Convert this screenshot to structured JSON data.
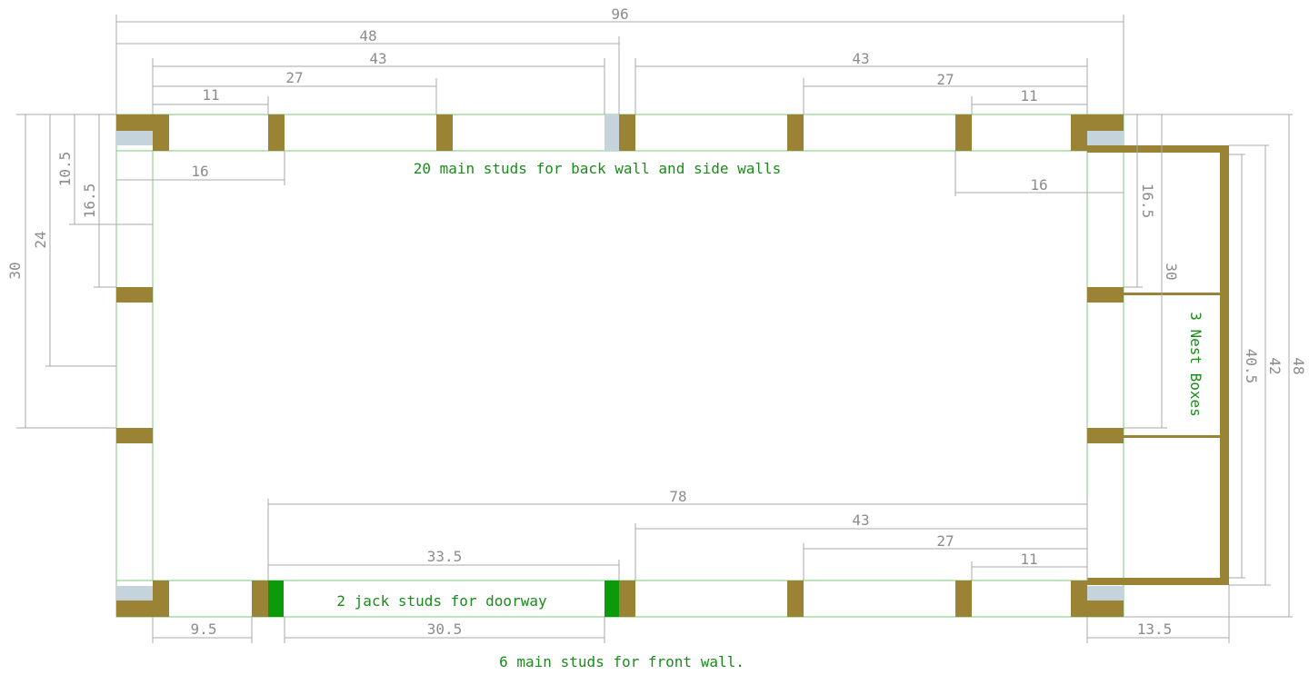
{
  "colors": {
    "stud": "#9a8334",
    "jack_stud": "#0a9a0a",
    "plate_fill": "#c5d4dc",
    "wall_line": "#7ec97e",
    "dim_line": "#a8a8a8",
    "dim_text": "#8c8c8c",
    "note_text": "#1a8c1a"
  },
  "notes": {
    "back_wall": "20 main studs for back wall and side walls",
    "jack_studs": "2 jack studs for doorway",
    "front_wall": "6 main studs for front wall.",
    "nest_boxes": "3 Nest Boxes"
  },
  "dimensions": {
    "top_96": "96",
    "top_48": "48",
    "top_43_left": "43",
    "top_27_left": "27",
    "top_11_left": "11",
    "top_43_right": "43",
    "top_27_right": "27",
    "top_11_right": "11",
    "left_16": "16",
    "right_16": "16",
    "left_30": "30",
    "left_24": "24",
    "left_10_5": "10.5",
    "left_16_5": "16.5",
    "right_16_5": "16.5",
    "right_30": "30",
    "right_40_5": "40.5",
    "right_42": "42",
    "right_48": "48",
    "bottom_78": "78",
    "bottom_43": "43",
    "bottom_27": "27",
    "bottom_11": "11",
    "bottom_33_5": "33.5",
    "bottom_30_5": "30.5",
    "bottom_9_5": "9.5",
    "bottom_13_5": "13.5"
  }
}
